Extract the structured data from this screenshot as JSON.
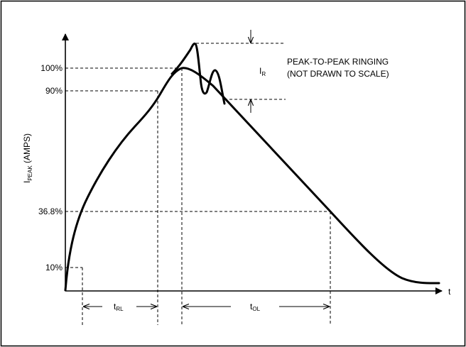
{
  "diagram": {
    "y_axis_label": {
      "main": "I",
      "sub": "PEAK",
      "rest": " (AMPS)"
    },
    "x_axis_label": "t",
    "levels": {
      "l100": "100%",
      "l90": "90%",
      "l368": "36.8%",
      "l10": "10%"
    },
    "ringing": {
      "symbol_main": "I",
      "symbol_sub": "R",
      "line1": "PEAK-TO-PEAK RINGING",
      "line2": "(NOT DRAWN TO SCALE)"
    },
    "intervals": {
      "t_rl": {
        "main": "t",
        "sub": "RL"
      },
      "t_ol": {
        "main": "t",
        "sub": "OL"
      }
    }
  }
}
